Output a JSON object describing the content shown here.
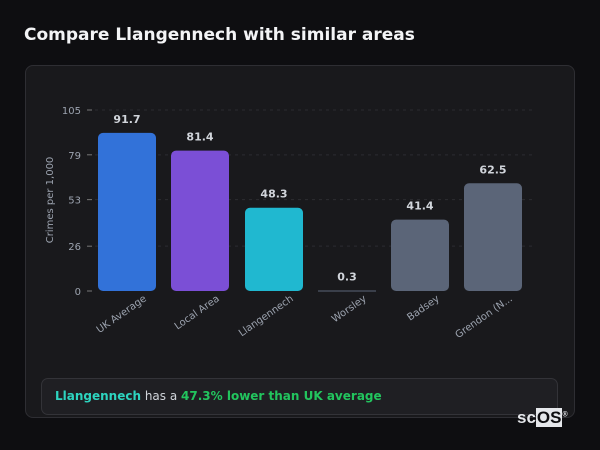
{
  "title": "Compare Llangennech with similar areas",
  "chart_data": {
    "type": "bar",
    "ylabel": "Crimes per 1,000",
    "ylim": [
      0,
      105
    ],
    "yticks": [
      0,
      26,
      53,
      79,
      105
    ],
    "grid": true,
    "categories": [
      "UK Average",
      "Local Area",
      "Llangennech",
      "Worsley",
      "Badsey",
      "Grendon (N..."
    ],
    "values": [
      91.7,
      81.4,
      48.3,
      0.3,
      41.4,
      62.5
    ],
    "value_labels": [
      "91.7",
      "81.4",
      "48.3",
      "0.3",
      "41.4",
      "62.5"
    ],
    "colors": [
      "#3272d9",
      "#7b4fd6",
      "#20b8d0",
      "#5b6578",
      "#5b6578",
      "#5b6578"
    ]
  },
  "summary": {
    "area": "Llangennech",
    "middle": " has a ",
    "comparison": "47.3% lower than UK average"
  },
  "logo": {
    "text_a": "sc",
    "text_b": "OS",
    "mark": "®"
  }
}
